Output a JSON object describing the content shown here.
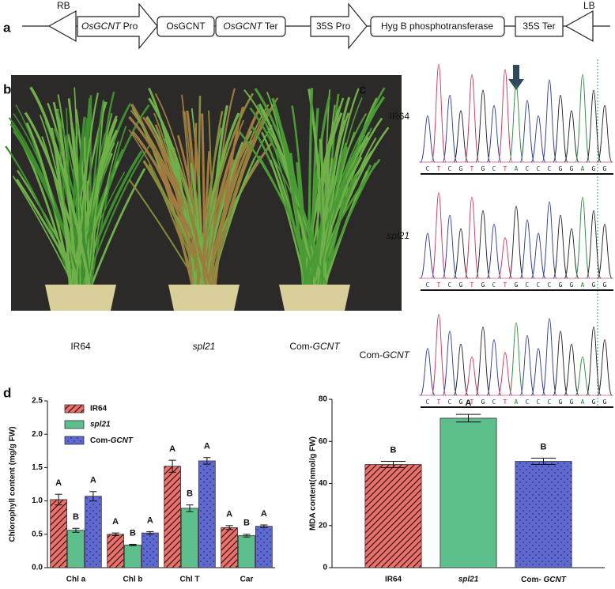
{
  "panel_labels": [
    "a",
    "b",
    "c",
    "d"
  ],
  "construct": {
    "RB": "RB",
    "LB": "LB",
    "elements": [
      "OsGCNT Pro",
      "OsGCNT",
      "OsGCNT Ter",
      "35S Pro",
      "Hyg B phosphotransferase",
      "35S Ter"
    ]
  },
  "photo": {
    "labels": [
      "IR64",
      "spl21",
      "Com-GCNT"
    ]
  },
  "sequencing": {
    "samples": [
      {
        "name": "IR64",
        "sequence": "CTCGTGCTACCCGGAGG"
      },
      {
        "name": "spl21",
        "sequence": "CTCGTGCTGCCCGGAGG"
      },
      {
        "name": "Com-GCNT",
        "sequence": "CTCGTGCTACCCGGAGG"
      }
    ]
  },
  "chart_data": [
    {
      "type": "bar",
      "ylabel": "Chlorophyll content  (mg/g FW)",
      "categories": [
        "Chl a",
        "Chl b",
        "Chl T",
        "Car"
      ],
      "series": [
        {
          "name": "IR64",
          "color": "#e8716b",
          "pattern": "hatch",
          "values": [
            1.02,
            0.5,
            1.52,
            0.6
          ],
          "errors": [
            0.08,
            0.02,
            0.09,
            0.03
          ],
          "significance": [
            "A",
            "A",
            "A",
            "A"
          ]
        },
        {
          "name": "spl21",
          "color": "#5cbf8c",
          "pattern": "plain",
          "values": [
            0.56,
            0.34,
            0.89,
            0.48
          ],
          "errors": [
            0.03,
            0.01,
            0.05,
            0.02
          ],
          "significance": [
            "B",
            "B",
            "B",
            "B"
          ]
        },
        {
          "name": "Com-GCNT",
          "color": "#5f6ad0",
          "pattern": "dots",
          "values": [
            1.07,
            0.52,
            1.6,
            0.62
          ],
          "errors": [
            0.07,
            0.02,
            0.05,
            0.02
          ],
          "significance": [
            "A",
            "A",
            "A",
            "A"
          ]
        }
      ],
      "ylim": [
        0,
        2.5
      ],
      "yticks": [
        {
          "value": 0,
          "label": "0.0"
        },
        0.5,
        {
          "value": 1,
          "label": "1.0"
        },
        1.5,
        {
          "value": 2,
          "label": "2.0"
        },
        2.5
      ],
      "legend": "upper left"
    },
    {
      "type": "bar",
      "ylabel": "MDA content(nmol/g FW)",
      "categories": [
        "IR64",
        "spl21",
        "Com- GCNT"
      ],
      "values": [
        49,
        71,
        50.5
      ],
      "errors": [
        1.5,
        1.8,
        1.5
      ],
      "significance": [
        "B",
        "A",
        "B"
      ],
      "colors": [
        "#e8716b",
        "#5cbf8c",
        "#5f6ad0"
      ],
      "patterns": [
        "hatch",
        "plain",
        "dots"
      ],
      "ylim": [
        0,
        80
      ],
      "yticks": [
        0,
        20,
        40,
        60,
        80
      ]
    }
  ]
}
